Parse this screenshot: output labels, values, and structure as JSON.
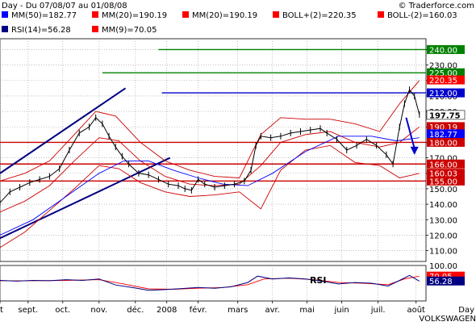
{
  "header": {
    "title": "Day - Du 07/08/07 au 01/08/08",
    "brand": "© Traderforce.com"
  },
  "legend": [
    {
      "text": "MM(50)=182.77",
      "color": "#0000ff"
    },
    {
      "text": "MM(20)=190.19",
      "color": "#ff0000"
    },
    {
      "text": "MM(20)=190.19",
      "color": "#ff0000"
    },
    {
      "text": "BOLL+(2)=220.35",
      "color": "#ff0000"
    },
    {
      "text": "BOLL-(2)=160.03",
      "color": "#ff0000"
    },
    {
      "text": "RSI(14)=56.28",
      "color": "#000080"
    },
    {
      "text": "MM(9)=70.05",
      "color": "#ff0000"
    }
  ],
  "footer": {
    "period": "Day",
    "symbol": "VOLKSWAGEN"
  },
  "colors": {
    "price": "#000000",
    "ma50": "#0000ff",
    "ma20": "#cc0000",
    "channel": "#000080",
    "support": "#cc0000",
    "resistance_green": "#008000",
    "resistance_blue": "#0000cc",
    "arrow": "#0000cc",
    "rsi": "#000080",
    "rsi_ma": "#ff0000"
  },
  "chart_data": {
    "type": "line",
    "title": "",
    "xlabel": "",
    "ylabel": "",
    "price_axis": {
      "ylim": [
        103,
        247
      ],
      "ticks": [
        110,
        120,
        130,
        140,
        150,
        160,
        170,
        180,
        190,
        200,
        210,
        220,
        230,
        240
      ]
    },
    "x_ticks": [
      "t",
      "sept.",
      "oct.",
      "nov.",
      "déc.",
      "2008",
      "févr.",
      "mars",
      "avr.",
      "mai",
      "juin",
      "juil.",
      "août"
    ],
    "x_tick_index": [
      0,
      17,
      38,
      60,
      82,
      101,
      120,
      144,
      165,
      186,
      207,
      229,
      252
    ],
    "x_range": [
      0,
      258
    ],
    "price_series": [
      {
        "i": 0,
        "v": 141
      },
      {
        "i": 6,
        "v": 148
      },
      {
        "i": 12,
        "v": 151
      },
      {
        "i": 18,
        "v": 154
      },
      {
        "i": 24,
        "v": 156
      },
      {
        "i": 30,
        "v": 158
      },
      {
        "i": 36,
        "v": 163
      },
      {
        "i": 42,
        "v": 175
      },
      {
        "i": 48,
        "v": 186
      },
      {
        "i": 54,
        "v": 190
      },
      {
        "i": 58,
        "v": 196
      },
      {
        "i": 62,
        "v": 192
      },
      {
        "i": 66,
        "v": 184
      },
      {
        "i": 70,
        "v": 177
      },
      {
        "i": 74,
        "v": 171
      },
      {
        "i": 78,
        "v": 166
      },
      {
        "i": 84,
        "v": 160
      },
      {
        "i": 90,
        "v": 159
      },
      {
        "i": 96,
        "v": 156
      },
      {
        "i": 102,
        "v": 153
      },
      {
        "i": 108,
        "v": 152
      },
      {
        "i": 112,
        "v": 150
      },
      {
        "i": 116,
        "v": 149
      },
      {
        "i": 120,
        "v": 156
      },
      {
        "i": 124,
        "v": 153
      },
      {
        "i": 130,
        "v": 151
      },
      {
        "i": 136,
        "v": 152
      },
      {
        "i": 142,
        "v": 153
      },
      {
        "i": 148,
        "v": 155
      },
      {
        "i": 152,
        "v": 162
      },
      {
        "i": 155,
        "v": 178
      },
      {
        "i": 158,
        "v": 184
      },
      {
        "i": 164,
        "v": 183
      },
      {
        "i": 170,
        "v": 184
      },
      {
        "i": 176,
        "v": 186
      },
      {
        "i": 182,
        "v": 187
      },
      {
        "i": 188,
        "v": 188
      },
      {
        "i": 194,
        "v": 189
      },
      {
        "i": 198,
        "v": 186
      },
      {
        "i": 204,
        "v": 182
      },
      {
        "i": 210,
        "v": 175
      },
      {
        "i": 216,
        "v": 178
      },
      {
        "i": 222,
        "v": 182
      },
      {
        "i": 228,
        "v": 178
      },
      {
        "i": 234,
        "v": 172
      },
      {
        "i": 238,
        "v": 166
      },
      {
        "i": 242,
        "v": 190
      },
      {
        "i": 245,
        "v": 205
      },
      {
        "i": 248,
        "v": 214
      },
      {
        "i": 251,
        "v": 210
      },
      {
        "i": 254,
        "v": 198
      }
    ],
    "ma50": [
      {
        "i": 0,
        "v": 120
      },
      {
        "i": 20,
        "v": 130
      },
      {
        "i": 40,
        "v": 145
      },
      {
        "i": 60,
        "v": 160
      },
      {
        "i": 75,
        "v": 168
      },
      {
        "i": 90,
        "v": 168
      },
      {
        "i": 105,
        "v": 162
      },
      {
        "i": 120,
        "v": 157
      },
      {
        "i": 135,
        "v": 153
      },
      {
        "i": 150,
        "v": 152
      },
      {
        "i": 165,
        "v": 160
      },
      {
        "i": 185,
        "v": 174
      },
      {
        "i": 205,
        "v": 184
      },
      {
        "i": 225,
        "v": 184
      },
      {
        "i": 240,
        "v": 181
      },
      {
        "i": 254,
        "v": 183
      }
    ],
    "ma20": [
      {
        "i": 0,
        "v": 135
      },
      {
        "i": 15,
        "v": 142
      },
      {
        "i": 30,
        "v": 152
      },
      {
        "i": 45,
        "v": 168
      },
      {
        "i": 60,
        "v": 183
      },
      {
        "i": 72,
        "v": 181
      },
      {
        "i": 85,
        "v": 168
      },
      {
        "i": 100,
        "v": 158
      },
      {
        "i": 115,
        "v": 153
      },
      {
        "i": 130,
        "v": 152
      },
      {
        "i": 145,
        "v": 153
      },
      {
        "i": 158,
        "v": 165
      },
      {
        "i": 170,
        "v": 180
      },
      {
        "i": 185,
        "v": 185
      },
      {
        "i": 200,
        "v": 187
      },
      {
        "i": 215,
        "v": 180
      },
      {
        "i": 230,
        "v": 177
      },
      {
        "i": 242,
        "v": 180
      },
      {
        "i": 254,
        "v": 190
      }
    ],
    "boll_upper": [
      {
        "i": 0,
        "v": 155
      },
      {
        "i": 15,
        "v": 160
      },
      {
        "i": 30,
        "v": 168
      },
      {
        "i": 45,
        "v": 185
      },
      {
        "i": 58,
        "v": 200
      },
      {
        "i": 70,
        "v": 197
      },
      {
        "i": 85,
        "v": 180
      },
      {
        "i": 100,
        "v": 168
      },
      {
        "i": 115,
        "v": 162
      },
      {
        "i": 130,
        "v": 158
      },
      {
        "i": 145,
        "v": 157
      },
      {
        "i": 158,
        "v": 185
      },
      {
        "i": 170,
        "v": 196
      },
      {
        "i": 185,
        "v": 195
      },
      {
        "i": 200,
        "v": 195
      },
      {
        "i": 215,
        "v": 192
      },
      {
        "i": 230,
        "v": 187
      },
      {
        "i": 242,
        "v": 205
      },
      {
        "i": 254,
        "v": 220
      }
    ],
    "boll_lower": [
      {
        "i": 0,
        "v": 112
      },
      {
        "i": 15,
        "v": 122
      },
      {
        "i": 30,
        "v": 136
      },
      {
        "i": 45,
        "v": 150
      },
      {
        "i": 60,
        "v": 165
      },
      {
        "i": 72,
        "v": 163
      },
      {
        "i": 85,
        "v": 154
      },
      {
        "i": 100,
        "v": 148
      },
      {
        "i": 115,
        "v": 145
      },
      {
        "i": 130,
        "v": 146
      },
      {
        "i": 145,
        "v": 148
      },
      {
        "i": 158,
        "v": 137
      },
      {
        "i": 170,
        "v": 162
      },
      {
        "i": 185,
        "v": 175
      },
      {
        "i": 200,
        "v": 178
      },
      {
        "i": 215,
        "v": 167
      },
      {
        "i": 230,
        "v": 165
      },
      {
        "i": 242,
        "v": 157
      },
      {
        "i": 254,
        "v": 160
      }
    ],
    "trend_channel": [
      {
        "from": {
          "i": 0,
          "v": 160
        },
        "to": {
          "i": 76,
          "v": 215
        }
      },
      {
        "from": {
          "i": 0,
          "v": 118
        },
        "to": {
          "i": 103,
          "v": 170
        }
      }
    ],
    "horizontal_levels": [
      {
        "value": 240,
        "kind": "resistance_green",
        "start_i": 96
      },
      {
        "value": 225,
        "kind": "resistance_green",
        "start_i": 62
      },
      {
        "value": 212,
        "kind": "resistance_blue",
        "start_i": 98
      },
      {
        "value": 180,
        "kind": "support",
        "start_i": 0
      },
      {
        "value": 166,
        "kind": "support",
        "start_i": 0
      },
      {
        "value": 155,
        "kind": "support",
        "start_i": 0
      }
    ],
    "projection_arrow": {
      "from": {
        "i": 246,
        "v": 196
      },
      "to": {
        "i": 251,
        "v": 173
      }
    },
    "price_badges": [
      {
        "label": "240.00",
        "value": 240,
        "color": "#008000"
      },
      {
        "label": "225.00",
        "value": 225,
        "color": "#008000"
      },
      {
        "label": "220.35",
        "value": 220.35,
        "color": "#ff0000"
      },
      {
        "label": "212.00",
        "value": 212,
        "color": "#0000cc"
      },
      {
        "label": "197.75",
        "value": 197.75,
        "color": "#ffffff"
      },
      {
        "label": "190.19",
        "value": 190.19,
        "color": "#cc0000"
      },
      {
        "label": "182.77",
        "value": 185.5,
        "color": "#0000ff"
      },
      {
        "label": "180.00",
        "value": 180,
        "color": "#cc0000"
      },
      {
        "label": "166.00",
        "value": 166,
        "color": "#cc0000"
      },
      {
        "label": "160.03",
        "value": 160.03,
        "color": "#cc0000"
      },
      {
        "label": "155.00",
        "value": 155,
        "color": "#cc0000"
      }
    ],
    "rsi": {
      "label": "RSI",
      "ylim": [
        0,
        100
      ],
      "ticks": [
        100
      ],
      "series": [
        {
          "i": 0,
          "v": 58
        },
        {
          "i": 10,
          "v": 56
        },
        {
          "i": 20,
          "v": 58
        },
        {
          "i": 30,
          "v": 57
        },
        {
          "i": 40,
          "v": 60
        },
        {
          "i": 50,
          "v": 58
        },
        {
          "i": 60,
          "v": 62
        },
        {
          "i": 70,
          "v": 45
        },
        {
          "i": 80,
          "v": 38
        },
        {
          "i": 90,
          "v": 30
        },
        {
          "i": 100,
          "v": 32
        },
        {
          "i": 110,
          "v": 35
        },
        {
          "i": 120,
          "v": 38
        },
        {
          "i": 130,
          "v": 36
        },
        {
          "i": 140,
          "v": 40
        },
        {
          "i": 150,
          "v": 52
        },
        {
          "i": 156,
          "v": 70
        },
        {
          "i": 165,
          "v": 62
        },
        {
          "i": 175,
          "v": 65
        },
        {
          "i": 185,
          "v": 62
        },
        {
          "i": 195,
          "v": 56
        },
        {
          "i": 205,
          "v": 48
        },
        {
          "i": 215,
          "v": 52
        },
        {
          "i": 225,
          "v": 50
        },
        {
          "i": 235,
          "v": 42
        },
        {
          "i": 242,
          "v": 58
        },
        {
          "i": 248,
          "v": 72
        },
        {
          "i": 254,
          "v": 56
        }
      ],
      "ma9": [
        {
          "i": 0,
          "v": 57
        },
        {
          "i": 20,
          "v": 57
        },
        {
          "i": 40,
          "v": 58
        },
        {
          "i": 60,
          "v": 60
        },
        {
          "i": 75,
          "v": 48
        },
        {
          "i": 90,
          "v": 34
        },
        {
          "i": 105,
          "v": 33
        },
        {
          "i": 120,
          "v": 36
        },
        {
          "i": 135,
          "v": 38
        },
        {
          "i": 150,
          "v": 46
        },
        {
          "i": 160,
          "v": 62
        },
        {
          "i": 175,
          "v": 64
        },
        {
          "i": 190,
          "v": 60
        },
        {
          "i": 205,
          "v": 52
        },
        {
          "i": 220,
          "v": 50
        },
        {
          "i": 235,
          "v": 46
        },
        {
          "i": 245,
          "v": 62
        },
        {
          "i": 254,
          "v": 70
        }
      ],
      "badges": [
        {
          "label": "70.05",
          "value": 70.05,
          "color": "#ff0000"
        },
        {
          "label": "56.28",
          "value": 56.28,
          "color": "#000080"
        }
      ]
    }
  }
}
